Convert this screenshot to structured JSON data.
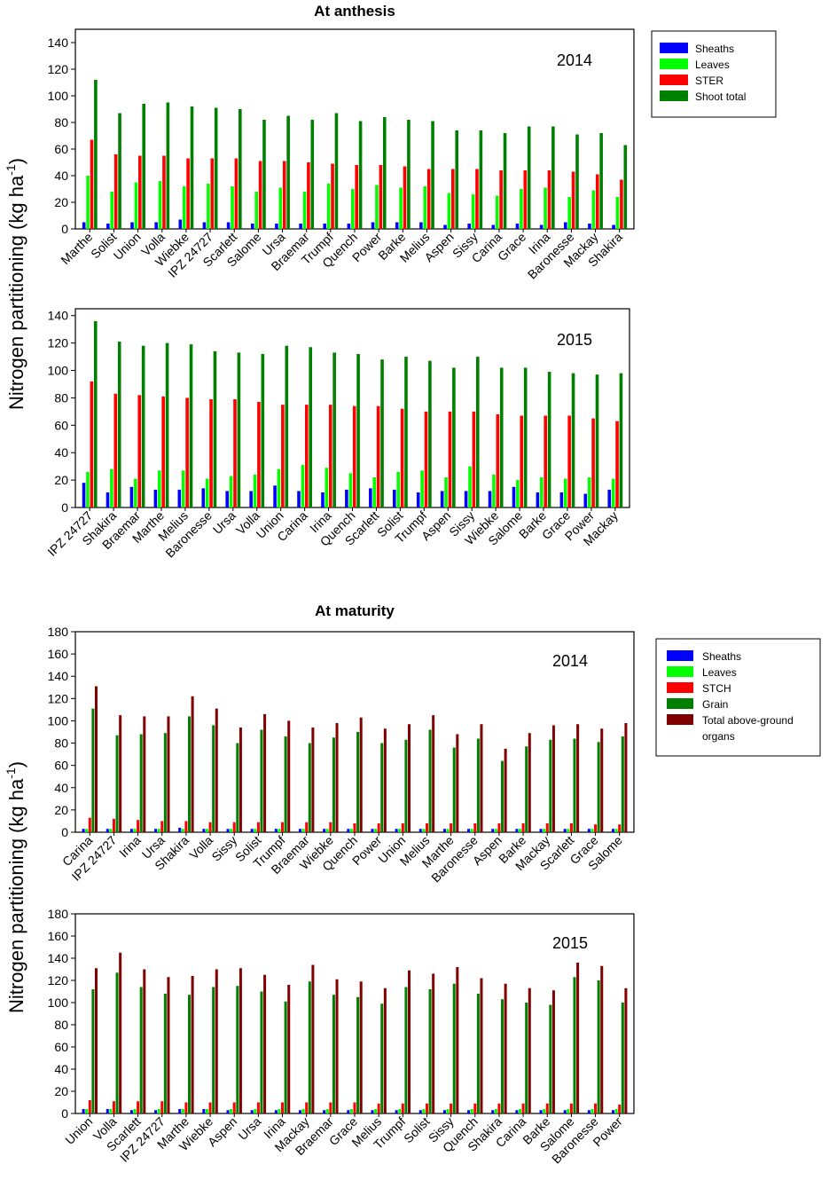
{
  "colors": {
    "sheaths": "#0000ff",
    "leaves": "#00ff00",
    "stem": "#ff0000",
    "shoot_total": "#008000",
    "grain": "#008000",
    "total_above": "#800000"
  },
  "panels": {
    "anthesis": {
      "title": "At anthesis",
      "ylabel_prefix": "Nitrogen partitioning (kg ha",
      "ylabel_exp": "-1",
      "ylabel_suffix": ")",
      "legend": [
        "Sheaths",
        "Leaves",
        "STER",
        "Shoot total"
      ]
    },
    "maturity": {
      "title": "At maturity",
      "ylabel_prefix": "Nitrogen partitioning (kg ha",
      "ylabel_exp": "-1",
      "ylabel_suffix": ")",
      "legend": [
        "Sheaths",
        "Leaves",
        "STCH",
        "Grain",
        "Total above-ground",
        "organs"
      ]
    }
  },
  "chart_data": [
    {
      "id": "anthesis-2014",
      "type": "bar",
      "title": "At anthesis",
      "year_label": "2014",
      "ylim": [
        0,
        150
      ],
      "yticks": [
        0,
        20,
        40,
        60,
        80,
        100,
        120,
        140
      ],
      "categories": [
        "Marthe",
        "Solist",
        "Union",
        "Volla",
        "Wiebke",
        "IPZ 24727",
        "Scarlett",
        "Salome",
        "Ursa",
        "Braemar",
        "Trumpf",
        "Quench",
        "Power",
        "Barke",
        "Melius",
        "Aspen",
        "Sissy",
        "Carina",
        "Grace",
        "Irina",
        "Baronesse",
        "Mackay",
        "Shakira"
      ],
      "series": [
        {
          "name": "Sheaths",
          "color_key": "sheaths",
          "values": [
            5,
            4,
            5,
            5,
            7,
            5,
            5,
            4,
            4,
            4,
            4,
            4,
            5,
            5,
            5,
            3,
            4,
            3,
            4,
            3,
            5,
            4,
            3
          ]
        },
        {
          "name": "Leaves",
          "color_key": "leaves",
          "values": [
            40,
            28,
            35,
            36,
            32,
            34,
            32,
            28,
            31,
            28,
            34,
            30,
            33,
            31,
            32,
            27,
            26,
            25,
            30,
            31,
            24,
            29,
            24
          ]
        },
        {
          "name": "STER",
          "color_key": "stem",
          "values": [
            67,
            56,
            55,
            55,
            53,
            53,
            53,
            51,
            51,
            50,
            49,
            48,
            48,
            47,
            45,
            45,
            45,
            44,
            44,
            44,
            43,
            41,
            37
          ]
        },
        {
          "name": "Shoot total",
          "color_key": "shoot_total",
          "values": [
            112,
            87,
            94,
            95,
            92,
            91,
            90,
            82,
            85,
            82,
            87,
            81,
            84,
            82,
            81,
            74,
            74,
            72,
            77,
            77,
            71,
            72,
            63
          ]
        }
      ]
    },
    {
      "id": "anthesis-2015",
      "type": "bar",
      "title": "",
      "year_label": "2015",
      "ylim": [
        0,
        145
      ],
      "yticks": [
        0,
        20,
        40,
        60,
        80,
        100,
        120,
        140
      ],
      "categories": [
        "IPZ 24727",
        "Shakira",
        "Braemar",
        "Marthe",
        "Melius",
        "Baronesse",
        "Ursa",
        "Volla",
        "Union",
        "Carina",
        "Irina",
        "Quench",
        "Scarlett",
        "Solist",
        "Trumpf",
        "Aspen",
        "Sissy",
        "Wiebke",
        "Salome",
        "Barke",
        "Grace",
        "Power",
        "Mackay"
      ],
      "series": [
        {
          "name": "Sheaths",
          "color_key": "sheaths",
          "values": [
            18,
            11,
            15,
            13,
            13,
            14,
            12,
            12,
            16,
            12,
            11,
            13,
            14,
            13,
            11,
            12,
            12,
            12,
            15,
            11,
            11,
            10,
            13
          ]
        },
        {
          "name": "Leaves",
          "color_key": "leaves",
          "values": [
            26,
            28,
            21,
            27,
            27,
            21,
            23,
            24,
            28,
            31,
            29,
            25,
            22,
            26,
            27,
            22,
            30,
            24,
            20,
            22,
            21,
            22,
            21
          ]
        },
        {
          "name": "STER",
          "color_key": "stem",
          "values": [
            92,
            83,
            82,
            81,
            80,
            79,
            79,
            77,
            75,
            75,
            75,
            74,
            74,
            72,
            70,
            70,
            70,
            68,
            67,
            67,
            67,
            65,
            63
          ]
        },
        {
          "name": "Shoot total",
          "color_key": "shoot_total",
          "values": [
            136,
            121,
            118,
            120,
            119,
            114,
            113,
            112,
            118,
            117,
            113,
            112,
            108,
            110,
            107,
            102,
            110,
            102,
            102,
            99,
            98,
            97,
            98
          ]
        }
      ]
    },
    {
      "id": "maturity-2014",
      "type": "bar",
      "title": "At maturity",
      "year_label": "2014",
      "ylim": [
        0,
        180
      ],
      "yticks": [
        0,
        20,
        40,
        60,
        80,
        100,
        120,
        140,
        160,
        180
      ],
      "categories": [
        "Carina",
        "IPZ 24727",
        "Irina",
        "Ursa",
        "Shakira",
        "Volla",
        "Sissy",
        "Solist",
        "Trumpf",
        "Braemar",
        "Wiebke",
        "Quench",
        "Power",
        "Union",
        "Melius",
        "Marthe",
        "Baronesse",
        "Aspen",
        "Barke",
        "Mackay",
        "Scarlett",
        "Grace",
        "Salome"
      ],
      "series": [
        {
          "name": "Sheaths",
          "color_key": "sheaths",
          "values": [
            3,
            3,
            3,
            3,
            4,
            3,
            3,
            3,
            3,
            3,
            3,
            3,
            3,
            3,
            3,
            3,
            3,
            3,
            3,
            3,
            3,
            3,
            3
          ]
        },
        {
          "name": "Leaves",
          "color_key": "leaves",
          "values": [
            3,
            3,
            3,
            3,
            3,
            3,
            3,
            3,
            3,
            3,
            3,
            3,
            3,
            3,
            3,
            3,
            3,
            3,
            3,
            3,
            3,
            3,
            3
          ]
        },
        {
          "name": "STCH",
          "color_key": "stem",
          "values": [
            13,
            12,
            11,
            10,
            10,
            9,
            9,
            9,
            9,
            9,
            9,
            8,
            8,
            8,
            8,
            8,
            8,
            8,
            8,
            8,
            8,
            7,
            7
          ]
        },
        {
          "name": "Grain",
          "color_key": "grain",
          "values": [
            111,
            87,
            88,
            89,
            104,
            96,
            80,
            92,
            86,
            80,
            85,
            90,
            80,
            83,
            92,
            76,
            84,
            64,
            77,
            83,
            84,
            81,
            86
          ]
        },
        {
          "name": "Total above-ground organs",
          "color_key": "total_above",
          "values": [
            131,
            105,
            104,
            104,
            122,
            111,
            94,
            106,
            100,
            94,
            98,
            103,
            93,
            97,
            105,
            88,
            97,
            75,
            89,
            96,
            97,
            93,
            98
          ]
        }
      ]
    },
    {
      "id": "maturity-2015",
      "type": "bar",
      "title": "",
      "year_label": "2015",
      "ylim": [
        0,
        180
      ],
      "yticks": [
        0,
        20,
        40,
        60,
        80,
        100,
        120,
        140,
        160,
        180
      ],
      "categories": [
        "Union",
        "Volla",
        "Scarlett",
        "IPZ 24727",
        "Marthe",
        "Wiebke",
        "Aspen",
        "Ursa",
        "Irina",
        "Mackay",
        "Braemar",
        "Grace",
        "Melius",
        "Trumpf",
        "Solist",
        "Sissy",
        "Quench",
        "Shakira",
        "Carina",
        "Barke",
        "Salome",
        "Baronesse",
        "Power"
      ],
      "series": [
        {
          "name": "Sheaths",
          "color_key": "sheaths",
          "values": [
            4,
            4,
            3,
            3,
            4,
            4,
            3,
            3,
            3,
            3,
            3,
            3,
            3,
            3,
            3,
            3,
            3,
            3,
            3,
            3,
            3,
            3,
            3
          ]
        },
        {
          "name": "Leaves",
          "color_key": "leaves",
          "values": [
            4,
            4,
            4,
            4,
            4,
            4,
            4,
            4,
            4,
            4,
            4,
            4,
            4,
            4,
            4,
            4,
            4,
            4,
            4,
            4,
            4,
            4,
            4
          ]
        },
        {
          "name": "STCH",
          "color_key": "stem",
          "values": [
            12,
            11,
            11,
            11,
            10,
            10,
            10,
            10,
            10,
            10,
            10,
            10,
            9,
            9,
            9,
            9,
            9,
            9,
            9,
            9,
            9,
            9,
            8
          ]
        },
        {
          "name": "Grain",
          "color_key": "grain",
          "values": [
            112,
            127,
            114,
            108,
            107,
            114,
            115,
            110,
            101,
            119,
            107,
            105,
            99,
            114,
            112,
            117,
            108,
            103,
            100,
            98,
            123,
            120,
            100
          ]
        },
        {
          "name": "Total above-ground organs",
          "color_key": "total_above",
          "values": [
            131,
            145,
            130,
            123,
            124,
            130,
            131,
            125,
            116,
            134,
            121,
            119,
            113,
            129,
            126,
            132,
            122,
            117,
            113,
            111,
            136,
            133,
            113
          ]
        }
      ]
    }
  ]
}
